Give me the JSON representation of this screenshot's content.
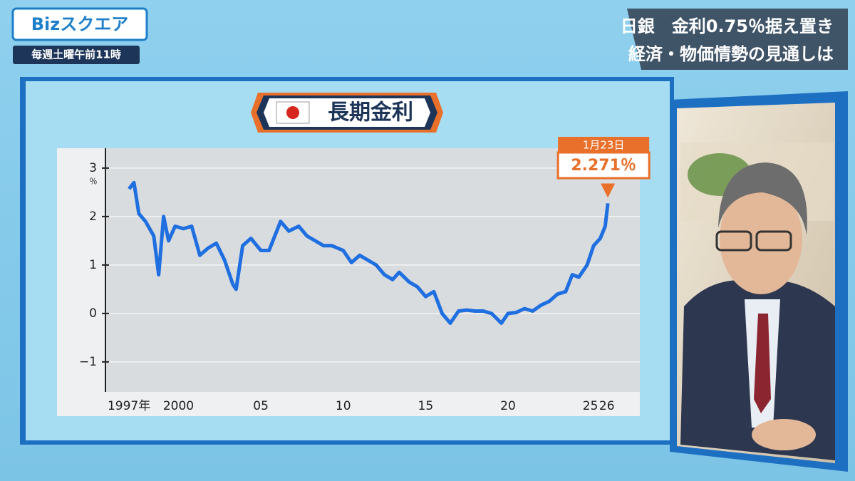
{
  "header": {
    "logo": "Bizスクエア",
    "schedule": "毎週土曜午前11時",
    "headline": [
      "日銀　金利0.75％据え置き",
      "経済・物価情勢の見通しは"
    ]
  },
  "chart_data": {
    "type": "line",
    "title": "長期金利",
    "y_unit": "％",
    "x": [
      1997.0,
      1997.3,
      1997.6,
      1998.0,
      1998.5,
      1998.8,
      1999.1,
      1999.4,
      1999.8,
      2000.3,
      2000.8,
      2001.3,
      2001.8,
      2002.3,
      2002.8,
      2003.3,
      2003.5,
      2003.9,
      2004.4,
      2005.0,
      2005.5,
      2006.2,
      2006.7,
      2007.3,
      2007.8,
      2008.3,
      2008.8,
      2009.3,
      2010.0,
      2010.5,
      2011.0,
      2011.5,
      2012.0,
      2012.5,
      2013.0,
      2013.4,
      2014.0,
      2014.5,
      2015.0,
      2015.5,
      2016.0,
      2016.5,
      2017.0,
      2017.5,
      2018.0,
      2018.5,
      2019.0,
      2019.6,
      2020.0,
      2020.5,
      2021.0,
      2021.5,
      2022.0,
      2022.5,
      2023.0,
      2023.5,
      2023.9,
      2024.3,
      2024.8,
      2025.2,
      2025.6,
      2025.9,
      2026.06
    ],
    "values": [
      2.57,
      2.7,
      2.06,
      1.9,
      1.6,
      0.8,
      2.0,
      1.5,
      1.8,
      1.75,
      1.8,
      1.2,
      1.35,
      1.45,
      1.1,
      0.6,
      0.5,
      1.4,
      1.55,
      1.3,
      1.3,
      1.9,
      1.7,
      1.8,
      1.6,
      1.5,
      1.4,
      1.4,
      1.3,
      1.05,
      1.2,
      1.1,
      1.0,
      0.8,
      0.7,
      0.85,
      0.65,
      0.55,
      0.35,
      0.45,
      0.0,
      -0.2,
      0.05,
      0.07,
      0.05,
      0.05,
      0.0,
      -0.2,
      0.0,
      0.02,
      0.1,
      0.05,
      0.17,
      0.25,
      0.4,
      0.45,
      0.8,
      0.75,
      1.0,
      1.4,
      1.55,
      1.8,
      2.271
    ],
    "color": "#1f6fe0",
    "xlim": [
      1995.57,
      2028.0
    ],
    "xticks": [
      {
        "value": 1997,
        "label": "1997年"
      },
      2000,
      {
        "value": 2005,
        "label": "05"
      },
      {
        "value": 2010,
        "label": "10"
      },
      {
        "value": 2015,
        "label": "15"
      },
      {
        "value": 2020,
        "label": "20"
      },
      {
        "value": 2025,
        "label": "25"
      },
      {
        "value": 2026,
        "label": "26"
      }
    ],
    "ylim": [
      -1.62,
      3.41
    ],
    "yticks": [
      {
        "value": -1,
        "label": "−1"
      },
      0,
      1,
      2,
      3
    ],
    "grid": true,
    "annotation": {
      "date": "1月23日",
      "value": 2.271,
      "value_label": "2.271％"
    }
  }
}
